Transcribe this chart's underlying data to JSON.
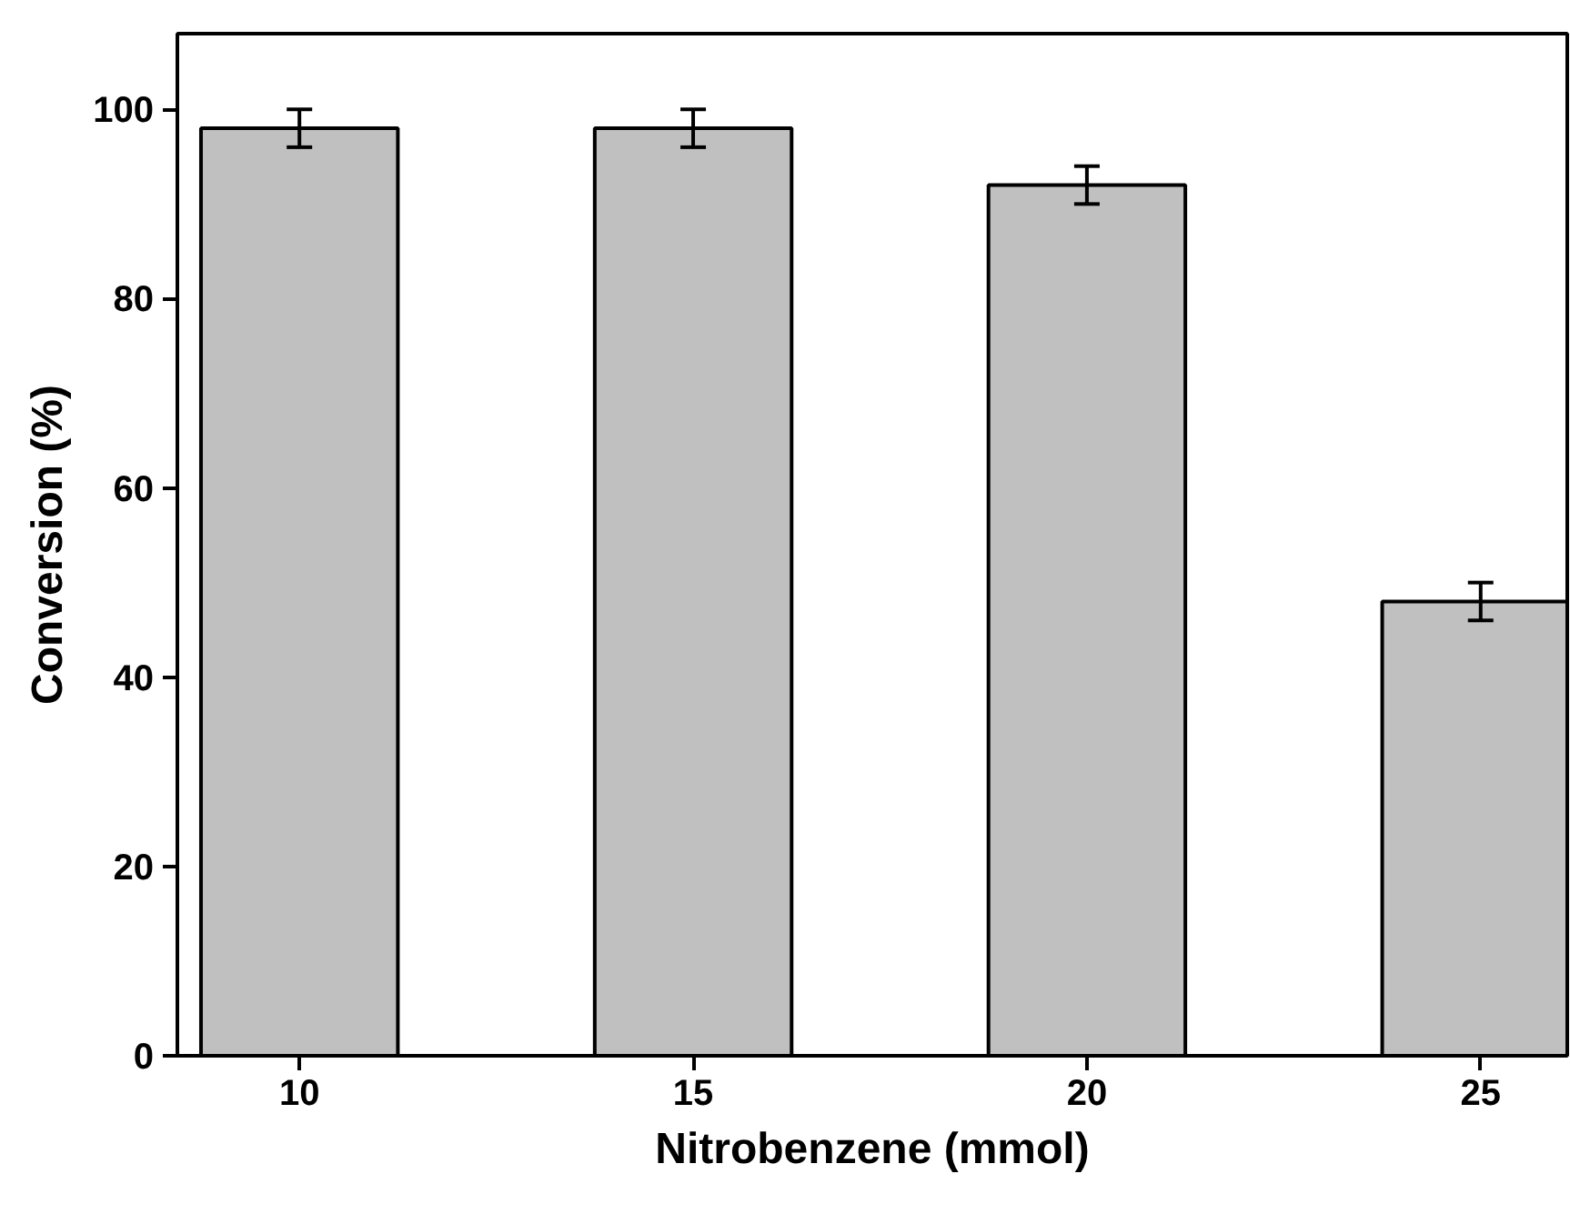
{
  "chart_data": {
    "type": "bar",
    "xlabel": "Nitrobenzene (mmol)",
    "ylabel": "Conversion (%)",
    "categories": [
      "10",
      "15",
      "20",
      "25"
    ],
    "series": [
      {
        "color": "#c0c0c0",
        "values": [
          98,
          98,
          92,
          48
        ],
        "errors": [
          2,
          2,
          2,
          2
        ]
      }
    ],
    "ylim": [
      0,
      108
    ],
    "yticks": [
      0,
      20,
      40,
      60,
      80,
      100
    ],
    "grid": false
  }
}
